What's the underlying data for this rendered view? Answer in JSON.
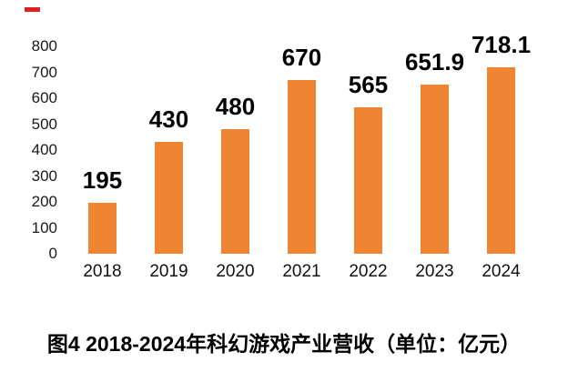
{
  "chart_data": {
    "type": "bar",
    "title": "",
    "xlabel": "",
    "ylabel": "",
    "categories": [
      "2018",
      "2019",
      "2020",
      "2021",
      "2022",
      "2023",
      "2024"
    ],
    "values": [
      195,
      430,
      480,
      670,
      565,
      651.9,
      718.1
    ],
    "value_labels": [
      "195",
      "430",
      "480",
      "670",
      "565",
      "651.9",
      "718.1"
    ],
    "ylim": [
      0,
      800
    ],
    "y_ticks": [
      800,
      700,
      600,
      500,
      400,
      300,
      200,
      100,
      0
    ],
    "grid": false,
    "legend": false,
    "bar_color": "#EF8432",
    "tick_color": "#1a1a1a",
    "label_color": "#000000"
  },
  "caption": {
    "text": "图4 2018-2024年科幻游戏产业营收（单位：亿元）"
  },
  "annotation": {
    "red_mark_color": "#E02020"
  }
}
